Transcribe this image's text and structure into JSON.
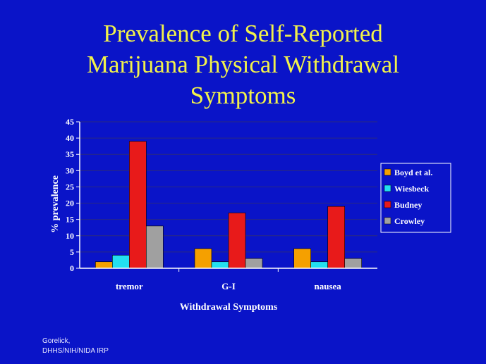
{
  "slide": {
    "title_lines": [
      "Prevalence of Self-Reported",
      "Marijuana Physical Withdrawal",
      "Symptoms"
    ],
    "credit_lines": [
      "Gorelick,",
      "DHHS/NIH/NIDA IRP"
    ]
  },
  "colors": {
    "background": "#0a14c8",
    "title": "#f2f24a",
    "axis_text": "#ffffff",
    "series": [
      "#f5a000",
      "#22e0f0",
      "#e81a1a",
      "#a0a0a0"
    ]
  },
  "chart_data": {
    "type": "bar",
    "title": "",
    "xlabel": "Withdrawal Symptoms",
    "ylabel": "% prevalence",
    "ylim": [
      0,
      45
    ],
    "yticks": [
      0,
      5,
      10,
      15,
      20,
      25,
      30,
      35,
      40,
      45
    ],
    "grid": true,
    "legend_position": "right",
    "categories": [
      "tremor",
      "G-I",
      "nausea"
    ],
    "series": [
      {
        "name": "Boyd et al.",
        "values": [
          2,
          6,
          6
        ]
      },
      {
        "name": "Wiesbeck",
        "values": [
          4,
          2,
          2
        ]
      },
      {
        "name": "Budney",
        "values": [
          39,
          17,
          19
        ]
      },
      {
        "name": "Crowley",
        "values": [
          13,
          3,
          3
        ]
      }
    ]
  }
}
